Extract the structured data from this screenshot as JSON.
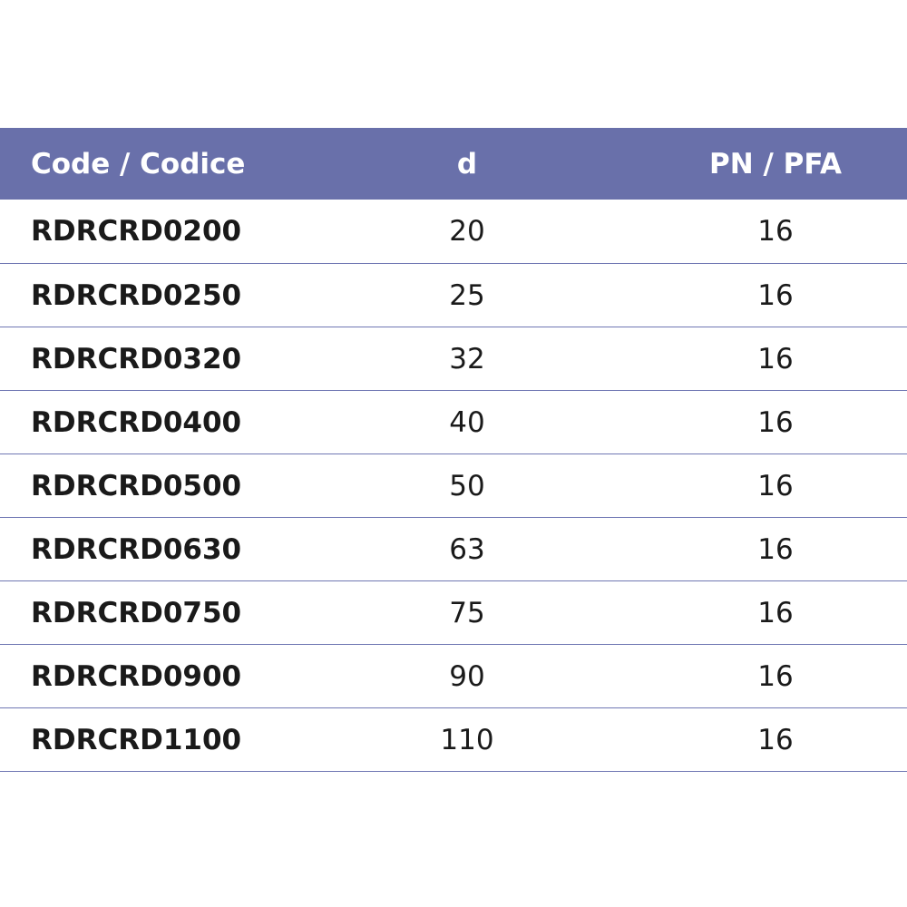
{
  "table": {
    "headers": {
      "code": "Code / Codice",
      "d": "d",
      "pn": "PN / PFA"
    },
    "rows": [
      {
        "code": "RDRCRD0200",
        "d": "20",
        "pn": "16"
      },
      {
        "code": "RDRCRD0250",
        "d": "25",
        "pn": "16"
      },
      {
        "code": "RDRCRD0320",
        "d": "32",
        "pn": "16"
      },
      {
        "code": "RDRCRD0400",
        "d": "40",
        "pn": "16"
      },
      {
        "code": "RDRCRD0500",
        "d": "50",
        "pn": "16"
      },
      {
        "code": "RDRCRD0630",
        "d": "63",
        "pn": "16"
      },
      {
        "code": "RDRCRD0750",
        "d": "75",
        "pn": "16"
      },
      {
        "code": "RDRCRD0900",
        "d": "90",
        "pn": "16"
      },
      {
        "code": "RDRCRD1100",
        "d": "110",
        "pn": "16"
      }
    ]
  },
  "colors": {
    "header_bg": "#6970aa",
    "header_text": "#ffffff",
    "row_divider": "#6f77b3",
    "body_text": "#1a1a1a"
  }
}
